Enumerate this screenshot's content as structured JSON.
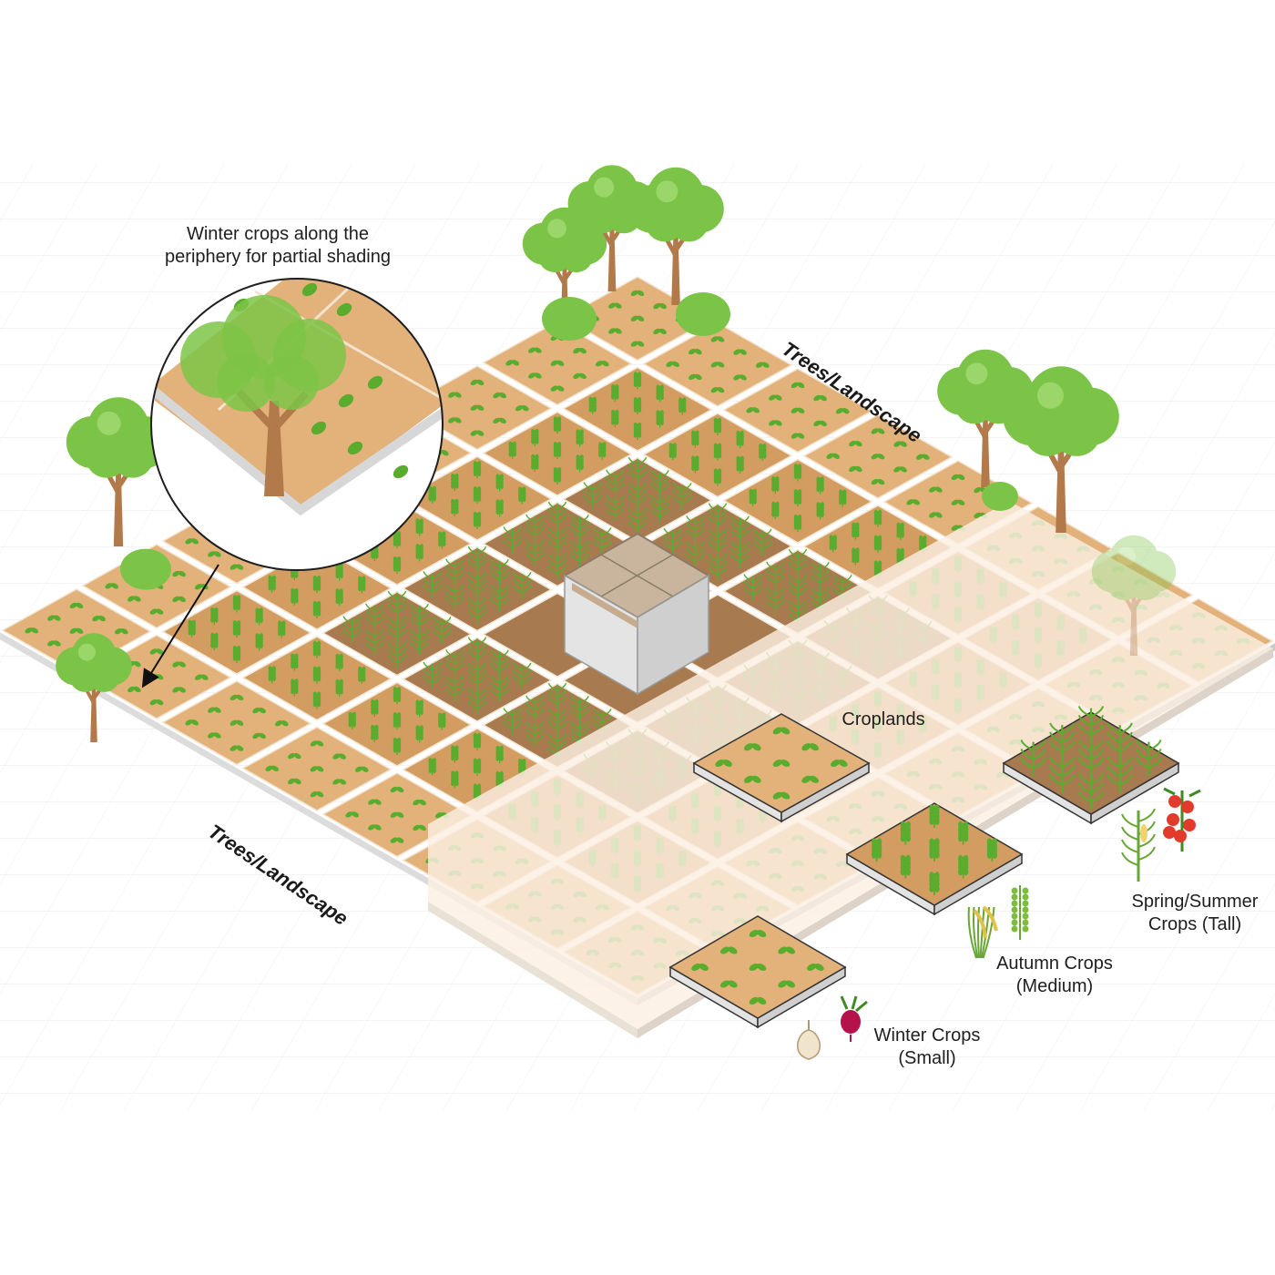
{
  "labels": {
    "annotation_line1": "Winter crops along the",
    "annotation_line2": "periphery for partial shading",
    "trees_top": "Trees/Landscape",
    "trees_left": "Trees/Landscape",
    "croplands": "Croplands",
    "spring_line1": "Spring/Summer",
    "spring_line2": "Crops (Tall)",
    "autumn_line1": "Autumn Crops",
    "autumn_line2": "(Medium)",
    "winter_line1": "Winter Crops",
    "winter_line2": "(Small)"
  },
  "colors": {
    "soil_outer": "#e2b27a",
    "soil_middle": "#d39d62",
    "soil_inner": "#a87a4f",
    "plant_green": "#5aac2e",
    "plant_dark": "#3f8a22",
    "tree_canopy": "#7cc447",
    "tree_trunk": "#b27a4a",
    "grid_line": "#e6e6e6",
    "faded_overlay": "#fbefe2"
  },
  "icons": {
    "garlic": "garlic-icon",
    "beet": "beet-icon",
    "rice": "rice-plant-icon",
    "millet": "millet-plant-icon",
    "corn": "corn-plant-icon",
    "tomato": "tomato-plant-icon",
    "tree": "tree-icon",
    "magnifier": "zoom-circle",
    "arrow": "pointer-arrow"
  }
}
